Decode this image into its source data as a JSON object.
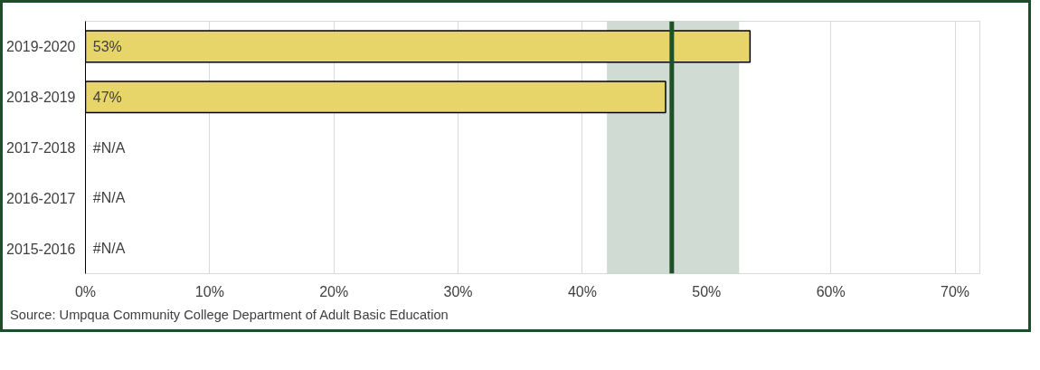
{
  "chart_data": {
    "type": "bar",
    "orientation": "horizontal",
    "categories": [
      "2019-2020",
      "2018-2019",
      "2017-2018",
      "2016-2017",
      "2015-2016"
    ],
    "values": [
      53.5,
      46.7,
      null,
      null,
      null
    ],
    "value_labels": [
      "53%",
      "47%",
      "#N/A",
      "#N/A",
      "#N/A"
    ],
    "color": "#e8d56a",
    "xlim": [
      0,
      72
    ],
    "xticks": [
      {
        "value": 0,
        "label": "0%"
      },
      {
        "value": 10,
        "label": "10%"
      },
      {
        "value": 20,
        "label": "20%"
      },
      {
        "value": 30,
        "label": "30%"
      },
      {
        "value": 40,
        "label": "40%"
      },
      {
        "value": 50,
        "label": "50%"
      },
      {
        "value": 60,
        "label": "60%"
      },
      {
        "value": 70,
        "label": "70%"
      }
    ],
    "grid": "x",
    "ref_lines": [
      {
        "axis": "x",
        "value": 47.2,
        "color": "#1e5128"
      }
    ],
    "bands": [
      {
        "axis": "x",
        "from": 42.0,
        "to": 52.6,
        "color": "#d0dcd3"
      }
    ],
    "annotations": [
      "Source: Umpqua Community College Department of Adult Basic Education"
    ]
  }
}
